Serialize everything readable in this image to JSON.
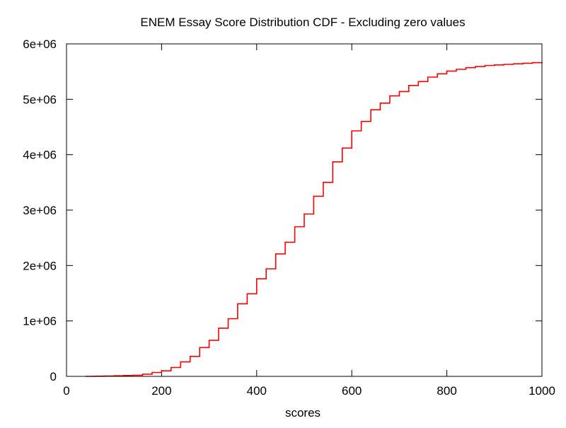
{
  "chart_data": {
    "type": "line",
    "title": "ENEM Essay Score Distribution CDF - Excluding zero values",
    "xlabel": "scores",
    "ylabel": "",
    "xlim": [
      0,
      1000
    ],
    "ylim": [
      0,
      6000000
    ],
    "x_ticks": [
      0,
      200,
      400,
      600,
      800,
      1000
    ],
    "x_tick_labels": [
      "0",
      "200",
      "400",
      "600",
      "800",
      "1000"
    ],
    "y_ticks": [
      0,
      1000000,
      2000000,
      3000000,
      4000000,
      5000000,
      6000000
    ],
    "y_tick_labels": [
      "0",
      "1e+06",
      "2e+06",
      "3e+06",
      "4e+06",
      "5e+06",
      "6e+06"
    ],
    "grid": false,
    "legend": false,
    "step": true,
    "series_color": "#ff0000",
    "series": [
      {
        "x": [
          40,
          60,
          80,
          100,
          120,
          140,
          160,
          180,
          200,
          220,
          240,
          260,
          280,
          300,
          320,
          340,
          360,
          380,
          400,
          420,
          440,
          460,
          480,
          500,
          520,
          540,
          560,
          580,
          600,
          620,
          640,
          660,
          680,
          700,
          720,
          740,
          760,
          780,
          800,
          820,
          840,
          860,
          880,
          900,
          920,
          940,
          960,
          980,
          1000
        ],
        "y": [
          0,
          3000,
          6000,
          10000,
          15000,
          20000,
          40000,
          70000,
          100000,
          160000,
          260000,
          360000,
          520000,
          650000,
          870000,
          1040000,
          1310000,
          1490000,
          1760000,
          1940000,
          2210000,
          2420000,
          2700000,
          2930000,
          3250000,
          3500000,
          3870000,
          4120000,
          4430000,
          4600000,
          4810000,
          4930000,
          5060000,
          5140000,
          5250000,
          5320000,
          5400000,
          5460000,
          5510000,
          5540000,
          5570000,
          5590000,
          5610000,
          5620000,
          5630000,
          5640000,
          5650000,
          5660000,
          5670000
        ]
      }
    ]
  }
}
